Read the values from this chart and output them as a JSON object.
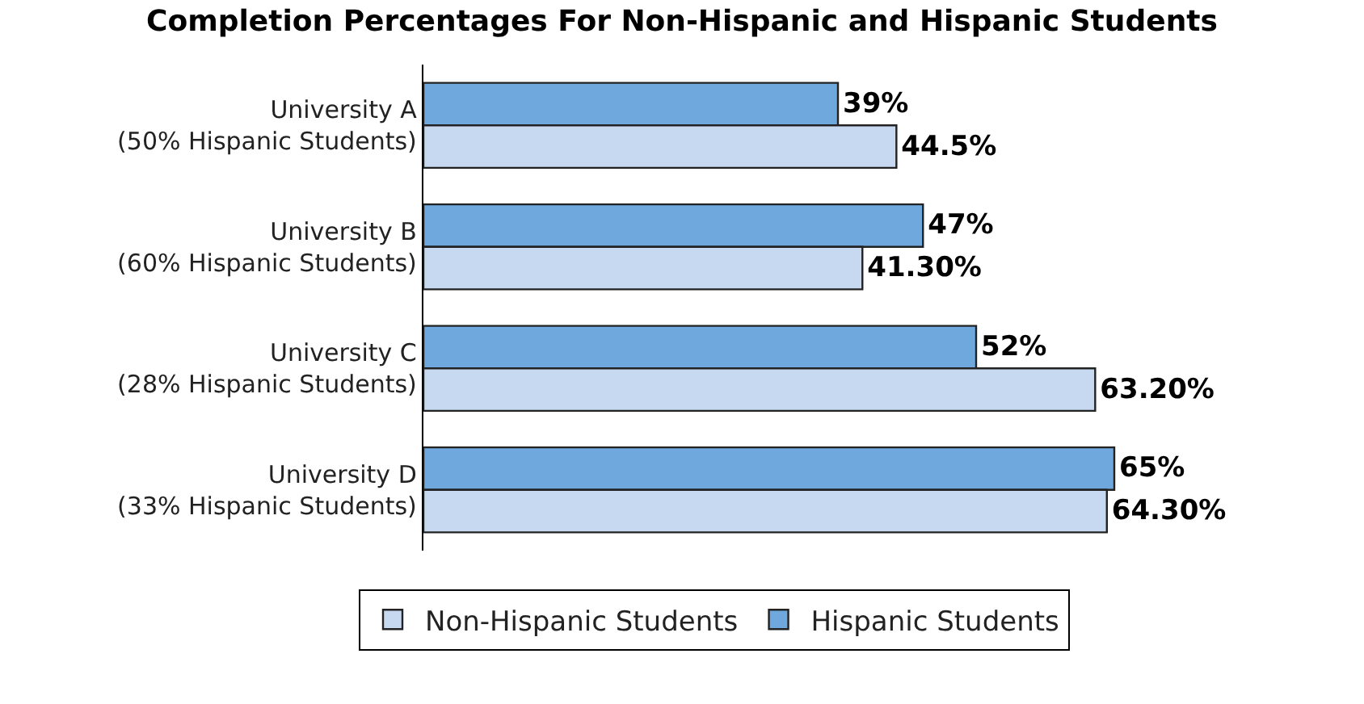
{
  "chart_data": {
    "type": "bar",
    "orientation": "horizontal",
    "title": "Completion Percentages For Non-Hispanic and Hispanic Students",
    "categories": [
      "University A\n(50% Hispanic Students)",
      "University B\n(60% Hispanic Students)",
      "University C\n(28% Hispanic Students)",
      "University D\n(33% Hispanic Students)"
    ],
    "series": [
      {
        "name": "Hispanic Students",
        "color": "#6fa8dc",
        "values": [
          39,
          47,
          52,
          65
        ],
        "value_labels": [
          "39%",
          "47%",
          "52%",
          "65%"
        ]
      },
      {
        "name": "Non-Hispanic Students",
        "color": "#c6d9f1",
        "values": [
          44.5,
          41.3,
          63.2,
          64.3
        ],
        "value_labels": [
          "44.5%",
          "41.30%",
          "63.20%",
          "64.30%"
        ]
      }
    ],
    "tick_labels": "y",
    "legend": "bottom"
  }
}
